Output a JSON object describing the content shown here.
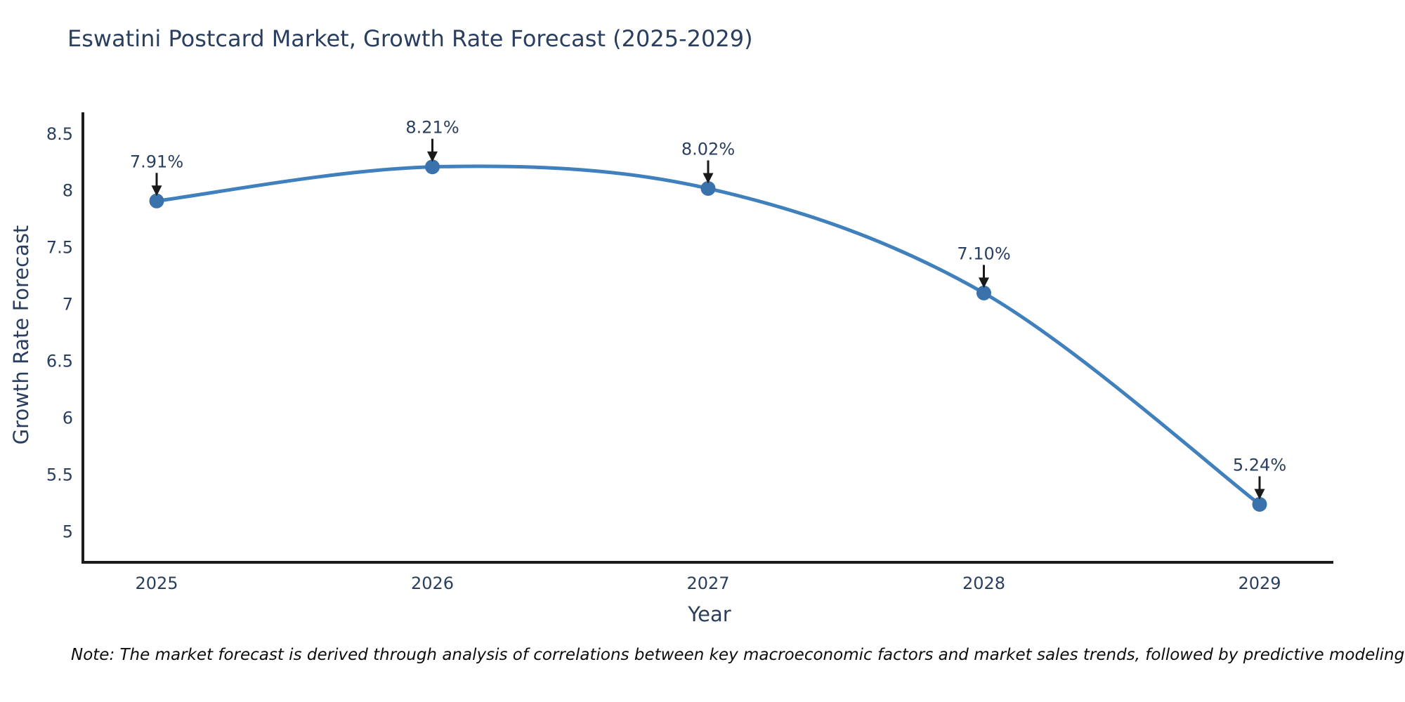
{
  "page": {
    "background": "#ffffff"
  },
  "chart_data": {
    "type": "line",
    "title": "Eswatini Postcard Market, Growth Rate Forecast (2025-2029)",
    "xlabel": "Year",
    "ylabel": "Growth Rate Forecast",
    "categories": [
      2025,
      2026,
      2027,
      2028,
      2029
    ],
    "series": [
      {
        "name": "Growth Rate Forecast",
        "values": [
          7.91,
          8.21,
          8.02,
          7.1,
          5.24
        ]
      }
    ],
    "point_labels": [
      "7.91%",
      "8.21%",
      "8.02%",
      "7.10%",
      "5.24%"
    ],
    "yticks": [
      5,
      5.5,
      6,
      6.5,
      7,
      7.5,
      8,
      8.5
    ],
    "ylim": [
      4.73,
      8.69
    ],
    "line_shape": "spline",
    "grid": false,
    "legend_position": "none",
    "annotation_style": "down-arrow-to-point",
    "colors": {
      "line": "#4080bd",
      "marker": "#3a72ab",
      "axis": "#1c1c1c",
      "text": "#2a3f5f",
      "annotation_arrow": "#1a1a1a",
      "note_text": "#0d0d0d",
      "background": "#ffffff"
    }
  },
  "note": {
    "text": "Note: The market forecast is derived through analysis of correlations between key macroeconomic factors and market sales trends, followed by predictive modeling to project future sales"
  }
}
